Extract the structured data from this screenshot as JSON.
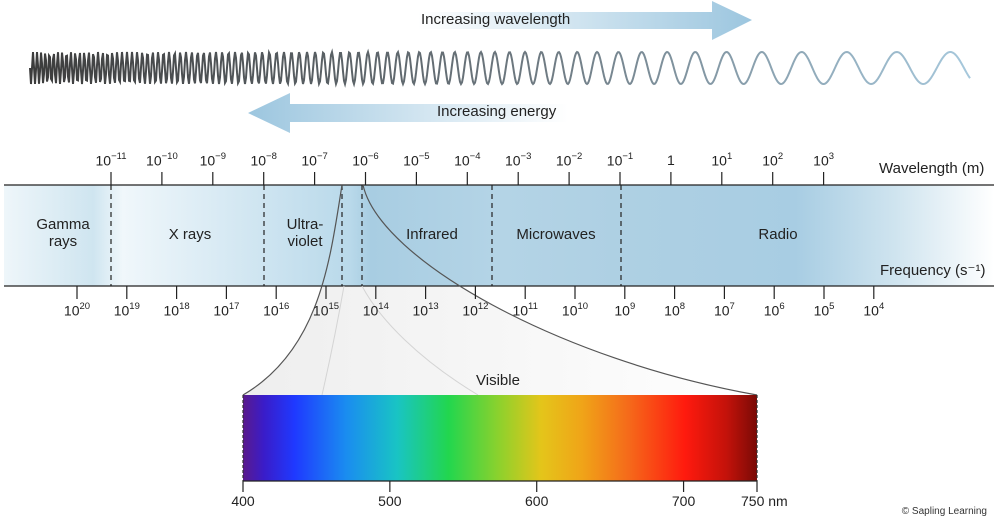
{
  "arrows": {
    "wavelength_label": "Increasing wavelength",
    "energy_label": "Increasing energy"
  },
  "axes": {
    "wavelength_label": "Wavelength (m)",
    "frequency_label": "Frequency (s⁻¹)"
  },
  "wavelength_ticks": [
    {
      "base": "10",
      "exp": "−11",
      "value": 1e-11
    },
    {
      "base": "10",
      "exp": "−10",
      "value": 1e-10
    },
    {
      "base": "10",
      "exp": "−9",
      "value": 1e-09
    },
    {
      "base": "10",
      "exp": "−8",
      "value": 1e-08
    },
    {
      "base": "10",
      "exp": "−7",
      "value": 1e-07
    },
    {
      "base": "10",
      "exp": "−6",
      "value": 1e-06
    },
    {
      "base": "10",
      "exp": "−5",
      "value": 1e-05
    },
    {
      "base": "10",
      "exp": "−4",
      "value": 0.0001
    },
    {
      "base": "10",
      "exp": "−3",
      "value": 0.001
    },
    {
      "base": "10",
      "exp": "−2",
      "value": 0.01
    },
    {
      "base": "10",
      "exp": "−1",
      "value": 0.1
    },
    {
      "base": "1",
      "exp": "",
      "value": 1
    },
    {
      "base": "10",
      "exp": "1",
      "value": 10
    },
    {
      "base": "10",
      "exp": "2",
      "value": 100
    },
    {
      "base": "10",
      "exp": "3",
      "value": 1000
    }
  ],
  "frequency_ticks": [
    {
      "base": "10",
      "exp": "20"
    },
    {
      "base": "10",
      "exp": "19"
    },
    {
      "base": "10",
      "exp": "18"
    },
    {
      "base": "10",
      "exp": "17"
    },
    {
      "base": "10",
      "exp": "16"
    },
    {
      "base": "10",
      "exp": "15"
    },
    {
      "base": "10",
      "exp": "14"
    },
    {
      "base": "10",
      "exp": "13"
    },
    {
      "base": "10",
      "exp": "12"
    },
    {
      "base": "10",
      "exp": "11"
    },
    {
      "base": "10",
      "exp": "10"
    },
    {
      "base": "10",
      "exp": "9"
    },
    {
      "base": "10",
      "exp": "8"
    },
    {
      "base": "10",
      "exp": "7"
    },
    {
      "base": "10",
      "exp": "6"
    },
    {
      "base": "10",
      "exp": "5"
    },
    {
      "base": "10",
      "exp": "4"
    }
  ],
  "regions": {
    "gamma": "Gamma\nrays",
    "xrays": "X rays",
    "uv": "Ultra-\nviolet",
    "infrared": "Infrared",
    "microwaves": "Microwaves",
    "radio": "Radio"
  },
  "visible": {
    "label": "Visible",
    "ticks": [
      "400",
      "500",
      "600",
      "700",
      "750 nm"
    ],
    "tick_values_nm": [
      400,
      500,
      600,
      700,
      750
    ]
  },
  "colors": {
    "band": "#a9cfe3",
    "band_light": "#e8f3f9",
    "arrow": "#9cc6df",
    "wave": "#555555",
    "wave_end": "#a6c8dc"
  },
  "credit": "© Sapling Learning"
}
